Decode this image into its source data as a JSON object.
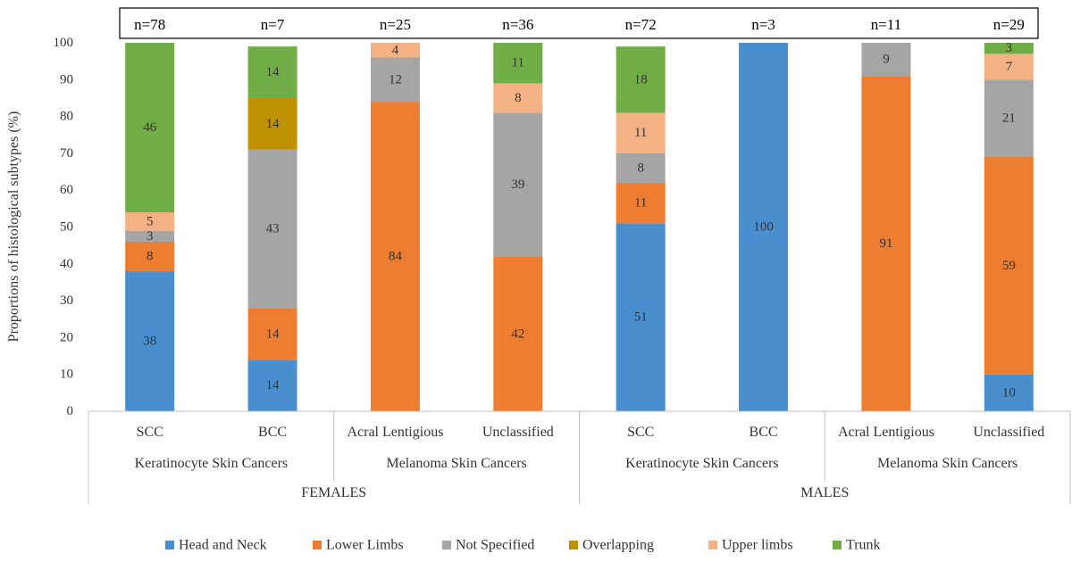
{
  "chart_data": {
    "type": "bar",
    "stacked": true,
    "ylabel": "Proportions of histological subtypes (%)",
    "ylim": [
      0,
      100
    ],
    "yticks": [
      0,
      10,
      20,
      30,
      40,
      50,
      60,
      70,
      80,
      90,
      100
    ],
    "grid": false,
    "legend_position": "bottom",
    "categories": [
      {
        "label": "SCC",
        "group": "Keratinocyte Skin Cancers",
        "sex": "FEMALES",
        "n": "n=78"
      },
      {
        "label": "BCC",
        "group": "Keratinocyte Skin Cancers",
        "sex": "FEMALES",
        "n": "n=7"
      },
      {
        "label": "Acral Lentigious",
        "group": "Melanoma Skin Cancers",
        "sex": "FEMALES",
        "n": "n=25"
      },
      {
        "label": "Unclassified",
        "group": "Melanoma Skin Cancers",
        "sex": "FEMALES",
        "n": "n=36"
      },
      {
        "label": "SCC",
        "group": "Keratinocyte Skin Cancers",
        "sex": "MALES",
        "n": "n=72"
      },
      {
        "label": "BCC",
        "group": "Keratinocyte Skin Cancers",
        "sex": "MALES",
        "n": "n=3"
      },
      {
        "label": "Acral Lentigious",
        "group": "Melanoma Skin Cancers",
        "sex": "MALES",
        "n": "n=11"
      },
      {
        "label": "Unclassified",
        "group": "Melanoma Skin Cancers",
        "sex": "MALES",
        "n": "n=29"
      }
    ],
    "groups": [
      {
        "label": "Keratinocyte Skin Cancers",
        "sex": "FEMALES"
      },
      {
        "label": "Melanoma Skin Cancers",
        "sex": "FEMALES"
      },
      {
        "label": "Keratinocyte Skin Cancers",
        "sex": "MALES"
      },
      {
        "label": "Melanoma Skin Cancers",
        "sex": "MALES"
      }
    ],
    "sexes": [
      "FEMALES",
      "MALES"
    ],
    "series": [
      {
        "name": "Head and Neck",
        "color": "#4a8fcd",
        "values": [
          38,
          14,
          0,
          0,
          51,
          100,
          0,
          10
        ],
        "labels": [
          "38",
          "14",
          "",
          "",
          "51",
          "100",
          "",
          "10"
        ]
      },
      {
        "name": "Lower Limbs",
        "color": "#ed7d31",
        "values": [
          8,
          14,
          84,
          42,
          11,
          0,
          91,
          59
        ],
        "labels": [
          "8",
          "14",
          "84",
          "42",
          "11",
          "",
          "91",
          "59"
        ]
      },
      {
        "name": "Not Specified",
        "color": "#a5a5a5",
        "values": [
          3,
          43,
          12,
          39,
          8,
          0,
          9,
          21
        ],
        "labels": [
          "3",
          "43",
          "12",
          "39",
          "8",
          "",
          "9",
          "21"
        ]
      },
      {
        "name": "Overlapping",
        "color": "#bf9000",
        "values": [
          0,
          14,
          0,
          0,
          0,
          0,
          0,
          0
        ],
        "labels": [
          "",
          "14",
          "",
          "",
          "",
          "",
          "",
          ""
        ]
      },
      {
        "name": "Upper limbs",
        "color": "#f4b183",
        "values": [
          5,
          0,
          4,
          8,
          11,
          0,
          0,
          7
        ],
        "labels": [
          "5",
          "",
          "4",
          "8",
          "11",
          "",
          "",
          "7"
        ]
      },
      {
        "name": "Trunk",
        "color": "#70ad47",
        "values": [
          46,
          14,
          0,
          11,
          18,
          0,
          0,
          3
        ],
        "labels": [
          "46",
          "14",
          "",
          "11",
          "18",
          "",
          "",
          "3"
        ]
      }
    ]
  }
}
